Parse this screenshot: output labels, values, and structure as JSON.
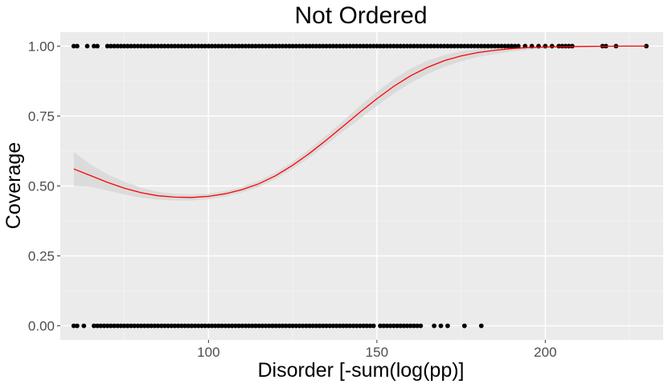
{
  "chart_data": {
    "type": "scatter",
    "title": "Not Ordered",
    "xlabel": "Disorder [-sum(log(pp)]",
    "ylabel": "Coverage",
    "xlim": [
      56,
      235
    ],
    "ylim": [
      -0.05,
      1.05
    ],
    "x_ticks": [
      100,
      150,
      200
    ],
    "y_ticks": [
      0.0,
      0.25,
      0.5,
      0.75,
      1.0
    ],
    "x_tick_labels": [
      "100",
      "150",
      "200"
    ],
    "y_tick_labels": [
      "0.00",
      "0.25",
      "0.50",
      "0.75",
      "1.00"
    ],
    "grid": true,
    "series": [
      {
        "kind": "points",
        "y": 1,
        "x": [
          60,
          61,
          64,
          66,
          67,
          70,
          71,
          72,
          73,
          74,
          75,
          76,
          77,
          78,
          79,
          80,
          81,
          82,
          83,
          84,
          85,
          86,
          87,
          88,
          89,
          90,
          91,
          92,
          93,
          94,
          95,
          96,
          97,
          98,
          99,
          100,
          101,
          102,
          103,
          104,
          105,
          106,
          107,
          108,
          109,
          110,
          111,
          112,
          113,
          114,
          115,
          116,
          117,
          118,
          119,
          120,
          121,
          122,
          123,
          124,
          125,
          126,
          127,
          128,
          129,
          130,
          131,
          132,
          133,
          134,
          135,
          136,
          137,
          138,
          139,
          140,
          141,
          142,
          143,
          144,
          145,
          146,
          147,
          148,
          149,
          150,
          151,
          152,
          153,
          154,
          155,
          156,
          157,
          158,
          159,
          160,
          161,
          162,
          163,
          164,
          165,
          166,
          167,
          168,
          169,
          170,
          171,
          172,
          173,
          174,
          175,
          176,
          177,
          178,
          179,
          180,
          181,
          182,
          183,
          184,
          185,
          186,
          187,
          188,
          189,
          190,
          191,
          192,
          194,
          196,
          198,
          200,
          202,
          204,
          205,
          206,
          207,
          208,
          217,
          218,
          221,
          230
        ],
        "color": "#000000"
      },
      {
        "kind": "points",
        "y": 0,
        "x": [
          60,
          61,
          63,
          66,
          67,
          68,
          69,
          70,
          71,
          72,
          73,
          74,
          75,
          76,
          77,
          78,
          79,
          80,
          81,
          82,
          83,
          84,
          85,
          86,
          87,
          88,
          89,
          90,
          91,
          92,
          93,
          94,
          95,
          96,
          97,
          98,
          99,
          100,
          101,
          102,
          103,
          104,
          105,
          106,
          107,
          108,
          109,
          110,
          111,
          112,
          113,
          114,
          115,
          116,
          117,
          118,
          119,
          120,
          121,
          122,
          123,
          124,
          125,
          126,
          127,
          128,
          129,
          130,
          131,
          132,
          133,
          134,
          135,
          136,
          137,
          138,
          139,
          140,
          141,
          142,
          143,
          144,
          145,
          146,
          147,
          148,
          149,
          151,
          152,
          153,
          154,
          155,
          156,
          157,
          158,
          159,
          160,
          161,
          162,
          163,
          167,
          169,
          171,
          176,
          181
        ],
        "color": "#000000"
      },
      {
        "kind": "fit",
        "color": "#ff0000",
        "band_color": "#d9d9d9",
        "x": [
          60,
          65,
          70,
          75,
          80,
          85,
          90,
          95,
          100,
          105,
          110,
          115,
          120,
          125,
          130,
          135,
          140,
          145,
          150,
          155,
          160,
          165,
          170,
          175,
          180,
          185,
          190,
          195,
          200,
          205,
          210,
          215,
          220,
          225,
          230
        ],
        "y": [
          0.561,
          0.537,
          0.513,
          0.492,
          0.476,
          0.465,
          0.46,
          0.459,
          0.463,
          0.472,
          0.487,
          0.508,
          0.537,
          0.574,
          0.617,
          0.664,
          0.714,
          0.764,
          0.812,
          0.856,
          0.894,
          0.924,
          0.948,
          0.965,
          0.977,
          0.985,
          0.991,
          0.995,
          0.997,
          0.998,
          0.999,
          0.9995,
          0.9998,
          0.9999,
          1.0
        ],
        "lower": [
          0.5,
          0.497,
          0.484,
          0.469,
          0.458,
          0.451,
          0.448,
          0.448,
          0.453,
          0.462,
          0.477,
          0.497,
          0.525,
          0.561,
          0.602,
          0.647,
          0.695,
          0.741,
          0.787,
          0.83,
          0.868,
          0.9,
          0.926,
          0.946,
          0.961,
          0.972,
          0.981,
          0.987,
          0.991,
          0.994,
          0.996,
          0.997,
          0.998,
          0.999,
          0.9995
        ],
        "upper": [
          0.622,
          0.577,
          0.542,
          0.515,
          0.494,
          0.479,
          0.472,
          0.47,
          0.473,
          0.482,
          0.497,
          0.519,
          0.549,
          0.587,
          0.632,
          0.681,
          0.733,
          0.787,
          0.837,
          0.882,
          0.92,
          0.948,
          0.968,
          0.982,
          0.99,
          0.995,
          0.998,
          0.999,
          1.0,
          1.0,
          1.0,
          1.0,
          1.0,
          1.0,
          1.0
        ]
      }
    ]
  }
}
